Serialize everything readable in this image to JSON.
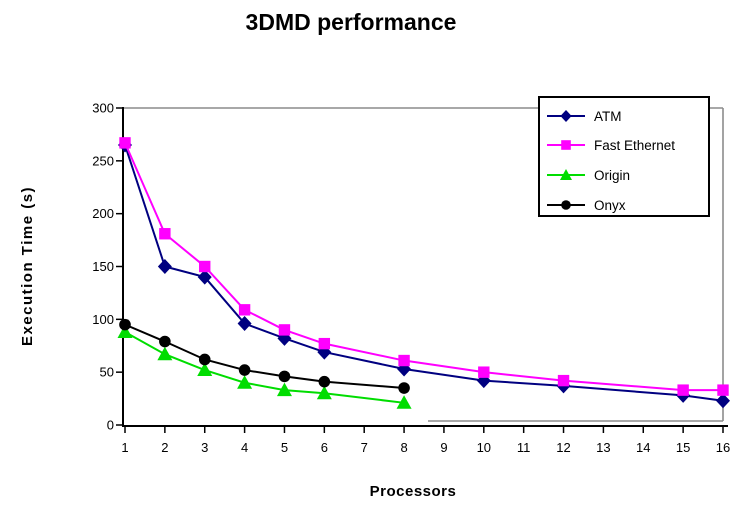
{
  "chart_data": {
    "type": "line",
    "title": "3DMD performance",
    "xlabel": "Processors",
    "ylabel": "Execution Time (s)",
    "x_ticks": [
      1,
      2,
      3,
      4,
      5,
      6,
      7,
      8,
      9,
      10,
      11,
      12,
      13,
      14,
      15,
      16
    ],
    "y_ticks": [
      0,
      50,
      100,
      150,
      200,
      250,
      300
    ],
    "xlim": [
      1,
      16
    ],
    "ylim": [
      0,
      300
    ],
    "grid": false,
    "legend_position": "top-right-inside",
    "series": [
      {
        "name": "ATM",
        "color": "#000080",
        "marker": "diamond",
        "x": [
          1,
          2,
          3,
          4,
          5,
          6,
          8,
          10,
          12,
          15,
          16
        ],
        "values": [
          265,
          150,
          140,
          96,
          82,
          69,
          53,
          42,
          37,
          28,
          23
        ]
      },
      {
        "name": "Fast Ethernet",
        "color": "#FF00FF",
        "marker": "square",
        "x": [
          1,
          2,
          3,
          4,
          5,
          6,
          8,
          10,
          12,
          15,
          16
        ],
        "values": [
          267,
          181,
          150,
          109,
          90,
          77,
          61,
          50,
          42,
          33,
          33
        ]
      },
      {
        "name": "Origin",
        "color": "#00DD00",
        "marker": "triangle",
        "x": [
          1,
          2,
          3,
          4,
          5,
          6,
          8
        ],
        "values": [
          88,
          67,
          52,
          40,
          33,
          30,
          21
        ]
      },
      {
        "name": "Onyx",
        "color": "#000000",
        "marker": "circle",
        "x": [
          1,
          2,
          3,
          4,
          5,
          6,
          8
        ],
        "values": [
          95,
          79,
          62,
          52,
          46,
          41,
          35
        ]
      }
    ]
  },
  "colors": {
    "axis": "#000000",
    "plot_border": "#8C8C8C",
    "background": "#FFFFFF"
  }
}
